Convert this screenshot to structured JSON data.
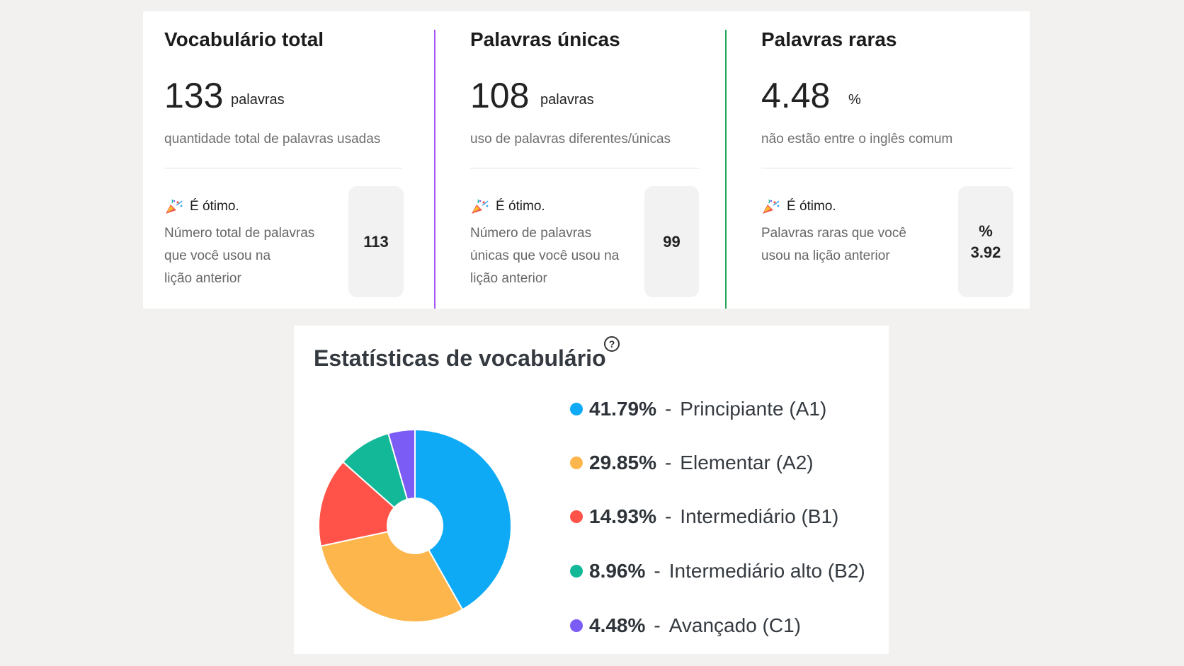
{
  "metrics": [
    {
      "title": "Vocabulário total",
      "value": "133",
      "unit": "palavras",
      "description": "quantidade total de palavras usadas",
      "status": "É ótimo.",
      "compare_lines": [
        "Número total de palavras",
        "que você usou na",
        "lição anterior"
      ],
      "previous": [
        "113"
      ]
    },
    {
      "title": "Palavras únicas",
      "value": "108",
      "unit": "palavras",
      "description": "uso de palavras diferentes/únicas",
      "status": "É ótimo.",
      "compare_lines": [
        "Número de palavras",
        "únicas que você usou na",
        "lição anterior"
      ],
      "previous": [
        "99"
      ]
    },
    {
      "title": "Palavras raras",
      "value": "4.48",
      "unit": "%",
      "description": "não estão entre o inglês comum",
      "status": "É ótimo.",
      "compare_lines": [
        "Palavras raras que você",
        "usou na lição anterior"
      ],
      "previous": [
        "%",
        "3.92"
      ]
    }
  ],
  "divider_colors": [
    "#a855f7",
    "#22a55b"
  ],
  "stats": {
    "title": "Estatísticas de vocabulário",
    "help_icon": "question-circle-icon",
    "help_glyph": "?",
    "separator": "-"
  },
  "chart_data": {
    "type": "pie",
    "donut": true,
    "slices": [
      {
        "label": "41.79%",
        "name": "Principiante (A1)",
        "value": 41.79,
        "color": "#0eaaf5"
      },
      {
        "label": "29.85%",
        "name": "Elementar (A2)",
        "value": 29.85,
        "color": "#fdb64c"
      },
      {
        "label": "14.93%",
        "name": "Intermediário (B1)",
        "value": 14.93,
        "color": "#ff5349"
      },
      {
        "label": "8.96%",
        "name": "Intermediário alto (B2)",
        "value": 8.96,
        "color": "#12b897"
      },
      {
        "label": "4.48%",
        "name": "Avançado (C1)",
        "value": 4.48,
        "color": "#7b5cf5"
      }
    ],
    "legend_position": "right"
  }
}
